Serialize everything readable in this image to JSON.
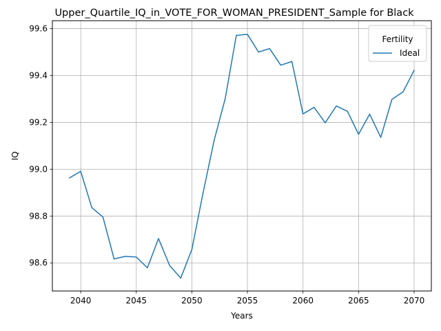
{
  "chart_data": {
    "type": "line",
    "title": "Upper_Quartile_IQ_in_VOTE_FOR_WOMAN_PRESIDENT_Sample for Black",
    "xlabel": "Years",
    "ylabel": "IQ",
    "xlim": [
      2037.45,
      2071.55
    ],
    "ylim": [
      98.48,
      99.634
    ],
    "x_ticks": [
      2040,
      2045,
      2050,
      2055,
      2060,
      2065,
      2070
    ],
    "y_ticks": [
      98.6,
      98.8,
      99.0,
      99.2,
      99.4,
      99.6
    ],
    "grid": true,
    "legend": {
      "title": "Fertility",
      "placement": "top-right"
    },
    "series": [
      {
        "name": "Ideal",
        "color": "#1f77b4",
        "x": [
          2039,
          2040,
          2041,
          2042,
          2043,
          2044,
          2045,
          2046,
          2047,
          2048,
          2049,
          2050,
          2051,
          2052,
          2053,
          2054,
          2055,
          2056,
          2057,
          2058,
          2059,
          2060,
          2061,
          2062,
          2063,
          2064,
          2065,
          2066,
          2067,
          2068,
          2069,
          2070
        ],
        "y": [
          98.963,
          98.991,
          98.836,
          98.796,
          98.617,
          98.628,
          98.625,
          98.579,
          98.704,
          98.589,
          98.535,
          98.657,
          98.897,
          99.122,
          99.301,
          99.571,
          99.576,
          99.5,
          99.515,
          99.444,
          99.46,
          99.236,
          99.264,
          99.198,
          99.27,
          99.247,
          99.149,
          99.235,
          99.136,
          99.298,
          99.33,
          99.422
        ]
      }
    ]
  }
}
